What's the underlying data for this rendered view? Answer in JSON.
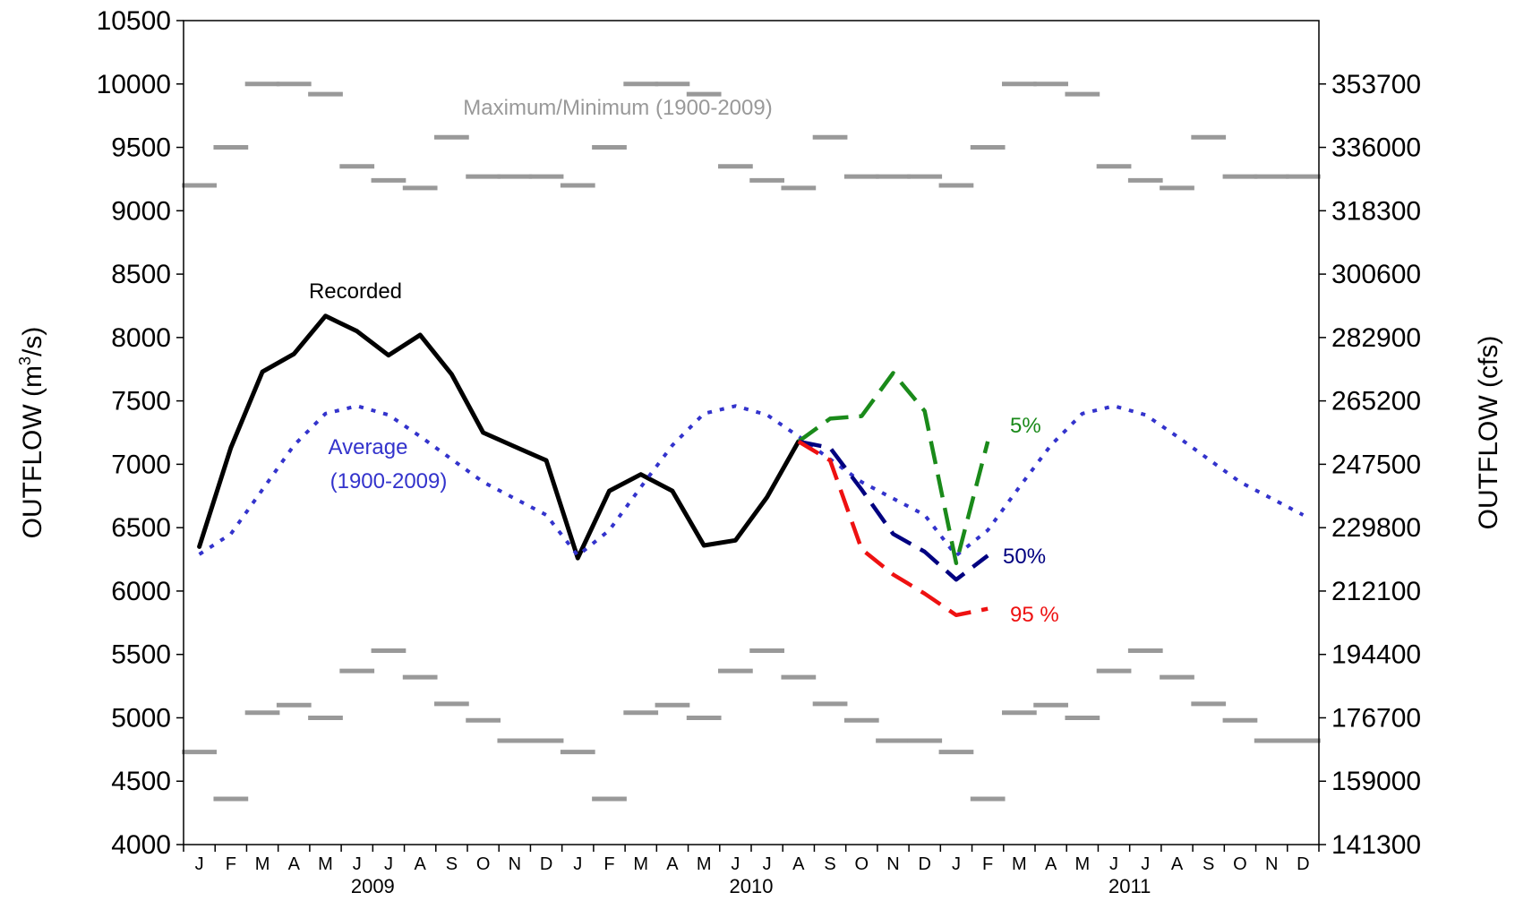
{
  "chart_data": {
    "type": "line",
    "title": "",
    "ylabel_left_main": "OUTFLOW (m",
    "ylabel_left_sup": "3",
    "ylabel_left_tail": "/s)",
    "ylabel_right": "OUTFLOW (cfs)",
    "ylim": [
      4000,
      10500
    ],
    "y_ticks_left": [
      "4000",
      "4500",
      "5000",
      "5500",
      "6000",
      "6500",
      "7000",
      "7500",
      "8000",
      "8500",
      "9000",
      "9500",
      "10000",
      "10500"
    ],
    "y_ticks_right": [
      {
        "value": 4000,
        "label": "141300"
      },
      {
        "value": 4500,
        "label": "159000"
      },
      {
        "value": 5000,
        "label": "176700"
      },
      {
        "value": 5500,
        "label": "194400"
      },
      {
        "value": 6000,
        "label": "212100"
      },
      {
        "value": 6500,
        "label": "229800"
      },
      {
        "value": 7000,
        "label": "247500"
      },
      {
        "value": 7500,
        "label": "265200"
      },
      {
        "value": 8000,
        "label": "282900"
      },
      {
        "value": 8500,
        "label": "300600"
      },
      {
        "value": 9000,
        "label": "318300"
      },
      {
        "value": 9500,
        "label": "336000"
      },
      {
        "value": 10000,
        "label": "353700"
      }
    ],
    "months": [
      "J",
      "F",
      "M",
      "A",
      "M",
      "J",
      "J",
      "A",
      "S",
      "O",
      "N",
      "D",
      "J",
      "F",
      "M",
      "A",
      "M",
      "J",
      "J",
      "A",
      "S",
      "O",
      "N",
      "D",
      "J",
      "F",
      "M",
      "A",
      "M",
      "J",
      "J",
      "A",
      "S",
      "O",
      "N",
      "D"
    ],
    "years": [
      {
        "label": "2009",
        "month_index": 5.5
      },
      {
        "label": "2010",
        "month_index": 17.5
      },
      {
        "label": "2011",
        "month_index": 29.5
      }
    ],
    "max_monthly": [
      9200,
      9500,
      10000,
      10000,
      9920,
      9350,
      9240,
      9180,
      9580,
      9270,
      9270,
      9270
    ],
    "min_monthly": [
      4730,
      4360,
      5040,
      5100,
      5000,
      5370,
      5530,
      5320,
      5110,
      4980,
      4820,
      4820
    ],
    "series": [
      {
        "name": "Recorded",
        "color": "#000000",
        "style": "solid",
        "points": [
          [
            0,
            6350
          ],
          [
            1,
            7130
          ],
          [
            2,
            7730
          ],
          [
            3,
            7870
          ],
          [
            4,
            8170
          ],
          [
            5,
            8050
          ],
          [
            6,
            7860
          ],
          [
            7,
            8020
          ],
          [
            8,
            7710
          ],
          [
            9,
            7250
          ],
          [
            10,
            7140
          ],
          [
            11,
            7030
          ],
          [
            12,
            6260
          ],
          [
            13,
            6790
          ],
          [
            14,
            6920
          ],
          [
            15,
            6790
          ],
          [
            16,
            6360
          ],
          [
            17,
            6400
          ],
          [
            18,
            6740
          ],
          [
            19,
            7180
          ]
        ]
      },
      {
        "name": "Average (1900-2009)",
        "color": "#3333cc",
        "style": "dotted",
        "points": [
          [
            0,
            6290
          ],
          [
            1,
            6450
          ],
          [
            2,
            6800
          ],
          [
            3,
            7150
          ],
          [
            4,
            7400
          ],
          [
            5,
            7460
          ],
          [
            6,
            7390
          ],
          [
            7,
            7220
          ],
          [
            8,
            7040
          ],
          [
            9,
            6860
          ],
          [
            10,
            6730
          ],
          [
            11,
            6600
          ],
          [
            12,
            6280
          ],
          [
            13,
            6480
          ],
          [
            14,
            6820
          ],
          [
            15,
            7150
          ],
          [
            16,
            7400
          ],
          [
            17,
            7460
          ],
          [
            18,
            7390
          ],
          [
            19,
            7220
          ],
          [
            20,
            7040
          ],
          [
            21,
            6860
          ],
          [
            22,
            6730
          ],
          [
            23,
            6600
          ],
          [
            24,
            6280
          ],
          [
            25,
            6480
          ],
          [
            26,
            6820
          ],
          [
            27,
            7150
          ],
          [
            28,
            7400
          ],
          [
            29,
            7460
          ],
          [
            30,
            7390
          ],
          [
            31,
            7220
          ],
          [
            32,
            7040
          ],
          [
            33,
            6860
          ],
          [
            34,
            6730
          ],
          [
            35,
            6600
          ]
        ]
      },
      {
        "name": "5%",
        "color": "#1a8a1a",
        "style": "dashed",
        "points": [
          [
            19,
            7180
          ],
          [
            20,
            7360
          ],
          [
            21,
            7380
          ],
          [
            22,
            7720
          ],
          [
            23,
            7420
          ],
          [
            24,
            6220
          ],
          [
            25,
            7180
          ]
        ]
      },
      {
        "name": "50%",
        "color": "#000080",
        "style": "dashed",
        "points": [
          [
            19,
            7180
          ],
          [
            20,
            7130
          ],
          [
            21,
            6800
          ],
          [
            22,
            6450
          ],
          [
            23,
            6310
          ],
          [
            24,
            6090
          ],
          [
            25,
            6280
          ]
        ]
      },
      {
        "name": "95 %",
        "color": "#ee1111",
        "style": "dashed",
        "points": [
          [
            19,
            7180
          ],
          [
            20,
            7030
          ],
          [
            21,
            6330
          ],
          [
            22,
            6130
          ],
          [
            23,
            5980
          ],
          [
            24,
            5810
          ],
          [
            25,
            5860
          ]
        ]
      }
    ],
    "annotations": [
      {
        "text": "Maximum/Minimum (1900-2009)",
        "color": "#999999"
      },
      {
        "text": "Recorded",
        "color": "#000000"
      },
      {
        "text": "Average",
        "color": "#3333cc"
      },
      {
        "text": "(1900-2009)",
        "color": "#3333cc"
      },
      {
        "text": "5%",
        "color": "#1a8a1a"
      },
      {
        "text": "50%",
        "color": "#000080"
      },
      {
        "text": "95 %",
        "color": "#ee1111"
      }
    ],
    "maxmin_color": "#999999",
    "grid": false
  }
}
